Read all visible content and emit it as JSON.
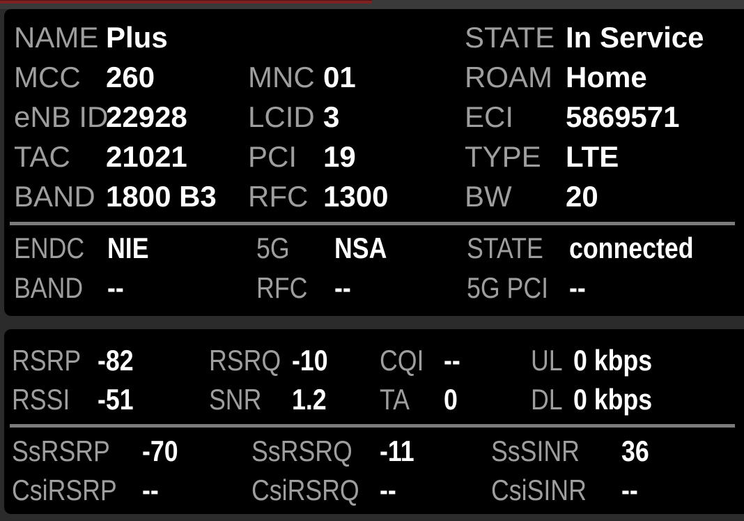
{
  "top_bar": {
    "progress_percent": 50
  },
  "colors": {
    "accent_red": "#7d2123",
    "top_bar_gray": "#3a3a3a",
    "page_bg": "#2b2b2b",
    "panel_bg": "#000000",
    "label_gray": "#9e9e9e",
    "value_white": "#ffffff",
    "divider_gray": "#7b7b7b"
  },
  "serving_cell": {
    "rows": [
      {
        "cells": [
          {
            "label": "NAME",
            "value": "Plus"
          },
          {
            "label": "STATE",
            "value": "In Service"
          }
        ]
      },
      {
        "cells": [
          {
            "label": "MCC",
            "value": "260"
          },
          {
            "label": "MNC",
            "value": "01"
          },
          {
            "label": "ROAM",
            "value": "Home"
          }
        ]
      },
      {
        "cells": [
          {
            "label": "eNB ID",
            "value": "22928"
          },
          {
            "label": "LCID",
            "value": "3"
          },
          {
            "label": "ECI",
            "value": "5869571"
          }
        ]
      },
      {
        "cells": [
          {
            "label": "TAC",
            "value": "21021"
          },
          {
            "label": "PCI",
            "value": "19"
          },
          {
            "label": "TYPE",
            "value": "LTE"
          }
        ]
      },
      {
        "cells": [
          {
            "label": "BAND",
            "value": "1800 B3"
          },
          {
            "label": "RFC",
            "value": "1300"
          },
          {
            "label": "BW",
            "value": "20"
          }
        ]
      }
    ]
  },
  "nr_status": {
    "rows": [
      {
        "cells": [
          {
            "label": "ENDC",
            "value": "NIE"
          },
          {
            "label": "5G",
            "value": "NSA"
          },
          {
            "label": "STATE",
            "value": "connected"
          }
        ]
      },
      {
        "cells": [
          {
            "label": "BAND",
            "value": "--"
          },
          {
            "label": "RFC",
            "value": "--"
          },
          {
            "label": "5G PCI",
            "value": "--"
          }
        ]
      }
    ]
  },
  "lte_signal": {
    "rows": [
      {
        "cells": [
          {
            "label": "RSRP",
            "value": "-82"
          },
          {
            "label": "RSRQ",
            "value": "-10"
          },
          {
            "label": "CQI",
            "value": "--"
          },
          {
            "label": "UL",
            "value": "0 kbps"
          }
        ]
      },
      {
        "cells": [
          {
            "label": "RSSI",
            "value": "-51"
          },
          {
            "label": "SNR",
            "value": "1.2"
          },
          {
            "label": "TA",
            "value": "0"
          },
          {
            "label": "DL",
            "value": "0 kbps"
          }
        ]
      }
    ]
  },
  "nr_signal": {
    "rows": [
      {
        "cells": [
          {
            "label": "SsRSRP",
            "value": "-70"
          },
          {
            "label": "SsRSRQ",
            "value": "-11"
          },
          {
            "label": "SsSINR",
            "value": "36"
          }
        ]
      },
      {
        "cells": [
          {
            "label": "CsiRSRP",
            "value": "--"
          },
          {
            "label": "CsiRSRQ",
            "value": "--"
          },
          {
            "label": "CsiSINR",
            "value": "--"
          }
        ]
      }
    ]
  }
}
